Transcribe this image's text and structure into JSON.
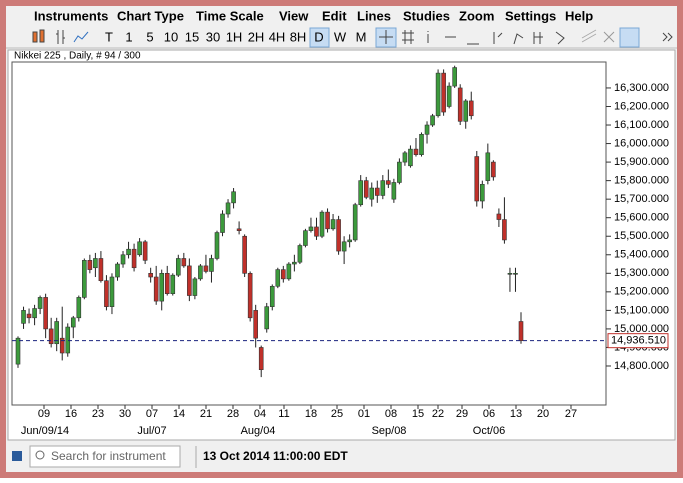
{
  "menu": [
    "Instruments",
    "Chart Type",
    "Time Scale",
    "View",
    "Edit",
    "Lines",
    "Studies",
    "Zoom",
    "Settings",
    "Help"
  ],
  "toolbar": [
    "T",
    "1",
    "5",
    "10",
    "15",
    "30",
    "1H",
    "2H",
    "4H",
    "8H",
    "D",
    "W",
    "M"
  ],
  "chart": {
    "type": "candlestick",
    "title": "Nikkei 225 , Daily, # 94 / 300",
    "up_color": "#3c9a3c",
    "down_color": "#c0302a",
    "ylim": [
      14589.5,
      16440
    ],
    "yticks": [
      {
        "value": 14800,
        "label": "14,800.000"
      },
      {
        "value": 14900,
        "label": "14,900.000"
      },
      {
        "value": 15000,
        "label": "15,000.000"
      },
      {
        "value": 15100,
        "label": "15,100.000"
      },
      {
        "value": 15200,
        "label": "15,200.000"
      },
      {
        "value": 15300,
        "label": "15,300.000"
      },
      {
        "value": 15400,
        "label": "15,400.000"
      },
      {
        "value": 15500,
        "label": "15,500.000"
      },
      {
        "value": 15600,
        "label": "15,600.000"
      },
      {
        "value": 15700,
        "label": "15,700.000"
      },
      {
        "value": 15800,
        "label": "15,800.000"
      },
      {
        "value": 15900,
        "label": "15,900.000"
      },
      {
        "value": 16000,
        "label": "16,000.000"
      },
      {
        "value": 16100,
        "label": "16,100.000"
      },
      {
        "value": 16200,
        "label": "16,200.000"
      },
      {
        "value": 16300,
        "label": "16,300.000"
      }
    ],
    "current_price": {
      "value": 14936.51,
      "label": "14,936.510"
    },
    "x_labels": [
      "09",
      "16",
      "23",
      "30",
      "07",
      "14",
      "21",
      "28",
      "04",
      "11",
      "18",
      "25",
      "01",
      "08",
      "15",
      "22",
      "29",
      "06",
      "13",
      "20",
      "27"
    ],
    "month_labels": [
      "Jun/09/14",
      "Jul/07",
      "Aug/04",
      "Sep/08",
      "Oct/06"
    ],
    "candles": [
      [
        14810,
        14960,
        14790,
        14950
      ],
      [
        15030,
        15120,
        15000,
        15100
      ],
      [
        15080,
        15110,
        15030,
        15060
      ],
      [
        15060,
        15130,
        15020,
        15110
      ],
      [
        15110,
        15180,
        15080,
        15170
      ],
      [
        15170,
        15190,
        14950,
        15000
      ],
      [
        15000,
        15060,
        14900,
        14920
      ],
      [
        14920,
        15060,
        14880,
        15040
      ],
      [
        14950,
        15120,
        14830,
        14870
      ],
      [
        14870,
        15030,
        14850,
        15010
      ],
      [
        15010,
        15070,
        14950,
        15060
      ],
      [
        15060,
        15180,
        15040,
        15170
      ],
      [
        15170,
        15380,
        15160,
        15370
      ],
      [
        15370,
        15400,
        15300,
        15320
      ],
      [
        15330,
        15410,
        15280,
        15380
      ],
      [
        15380,
        15420,
        15250,
        15260
      ],
      [
        15260,
        15290,
        15100,
        15120
      ],
      [
        15120,
        15300,
        15080,
        15280
      ],
      [
        15280,
        15360,
        15260,
        15350
      ],
      [
        15350,
        15420,
        15330,
        15400
      ],
      [
        15400,
        15470,
        15380,
        15430
      ],
      [
        15430,
        15460,
        15310,
        15330
      ],
      [
        15400,
        15490,
        15390,
        15470
      ],
      [
        15470,
        15480,
        15350,
        15370
      ],
      [
        15300,
        15330,
        15250,
        15280
      ],
      [
        15280,
        15340,
        15130,
        15150
      ],
      [
        15150,
        15320,
        15100,
        15300
      ],
      [
        15300,
        15340,
        15180,
        15190
      ],
      [
        15190,
        15300,
        15180,
        15290
      ],
      [
        15290,
        15400,
        15280,
        15380
      ],
      [
        15380,
        15410,
        15330,
        15340
      ],
      [
        15340,
        15380,
        15150,
        15180
      ],
      [
        15180,
        15280,
        15160,
        15270
      ],
      [
        15270,
        15350,
        15260,
        15340
      ],
      [
        15340,
        15400,
        15300,
        15310
      ],
      [
        15310,
        15400,
        15250,
        15380
      ],
      [
        15380,
        15530,
        15370,
        15520
      ],
      [
        15520,
        15640,
        15500,
        15620
      ],
      [
        15620,
        15700,
        15600,
        15680
      ],
      [
        15680,
        15760,
        15650,
        15740
      ],
      [
        15540,
        15580,
        15510,
        15530
      ],
      [
        15500,
        15510,
        15280,
        15300
      ],
      [
        15300,
        15310,
        15040,
        15060
      ],
      [
        15100,
        15130,
        14900,
        14950
      ],
      [
        14900,
        14910,
        14740,
        14780
      ],
      [
        15000,
        15140,
        14980,
        15120
      ],
      [
        15120,
        15240,
        15100,
        15230
      ],
      [
        15230,
        15330,
        15220,
        15320
      ],
      [
        15320,
        15340,
        15250,
        15270
      ],
      [
        15270,
        15360,
        15260,
        15350
      ],
      [
        15350,
        15400,
        15310,
        15360
      ],
      [
        15360,
        15460,
        15350,
        15450
      ],
      [
        15450,
        15540,
        15440,
        15530
      ],
      [
        15530,
        15600,
        15520,
        15550
      ],
      [
        15550,
        15600,
        15480,
        15500
      ],
      [
        15500,
        15640,
        15490,
        15630
      ],
      [
        15630,
        15650,
        15520,
        15540
      ],
      [
        15540,
        15620,
        15530,
        15590
      ],
      [
        15590,
        15610,
        15400,
        15420
      ],
      [
        15420,
        15500,
        15350,
        15470
      ],
      [
        15470,
        15510,
        15440,
        15480
      ],
      [
        15480,
        15680,
        15470,
        15670
      ],
      [
        15670,
        15830,
        15660,
        15800
      ],
      [
        15800,
        15820,
        15700,
        15710
      ],
      [
        15700,
        15790,
        15660,
        15760
      ],
      [
        15760,
        15800,
        15680,
        15720
      ],
      [
        15720,
        15830,
        15700,
        15800
      ],
      [
        15800,
        15860,
        15760,
        15780
      ],
      [
        15700,
        15810,
        15680,
        15790
      ],
      [
        15790,
        15920,
        15780,
        15900
      ],
      [
        15900,
        15960,
        15880,
        15950
      ],
      [
        15880,
        15990,
        15870,
        15970
      ],
      [
        15970,
        16030,
        15930,
        15940
      ],
      [
        15940,
        16060,
        15930,
        16050
      ],
      [
        16050,
        16120,
        16000,
        16100
      ],
      [
        16100,
        16160,
        16090,
        16150
      ],
      [
        16150,
        16400,
        16140,
        16380
      ],
      [
        16380,
        16400,
        16150,
        16170
      ],
      [
        16200,
        16330,
        16190,
        16310
      ],
      [
        16310,
        16420,
        16300,
        16410
      ],
      [
        16300,
        16320,
        16100,
        16120
      ],
      [
        16120,
        16240,
        16080,
        16230
      ],
      [
        16230,
        16280,
        16130,
        16150
      ],
      [
        15930,
        15960,
        15660,
        15690
      ],
      [
        15690,
        15800,
        15650,
        15780
      ],
      [
        15800,
        16000,
        15780,
        15950
      ],
      [
        15900,
        15910,
        15800,
        15820
      ],
      [
        15620,
        15650,
        15550,
        15590
      ],
      [
        15590,
        15710,
        15460,
        15480
      ],
      [
        15300,
        15330,
        15200,
        15300
      ],
      [
        15300,
        15330,
        15200,
        15300
      ],
      [
        15040,
        15090,
        14920,
        14936.51
      ]
    ]
  },
  "status": {
    "search_placeholder": "Search for instrument",
    "datetime": "13 Oct 2014 11:00:00 EDT"
  }
}
